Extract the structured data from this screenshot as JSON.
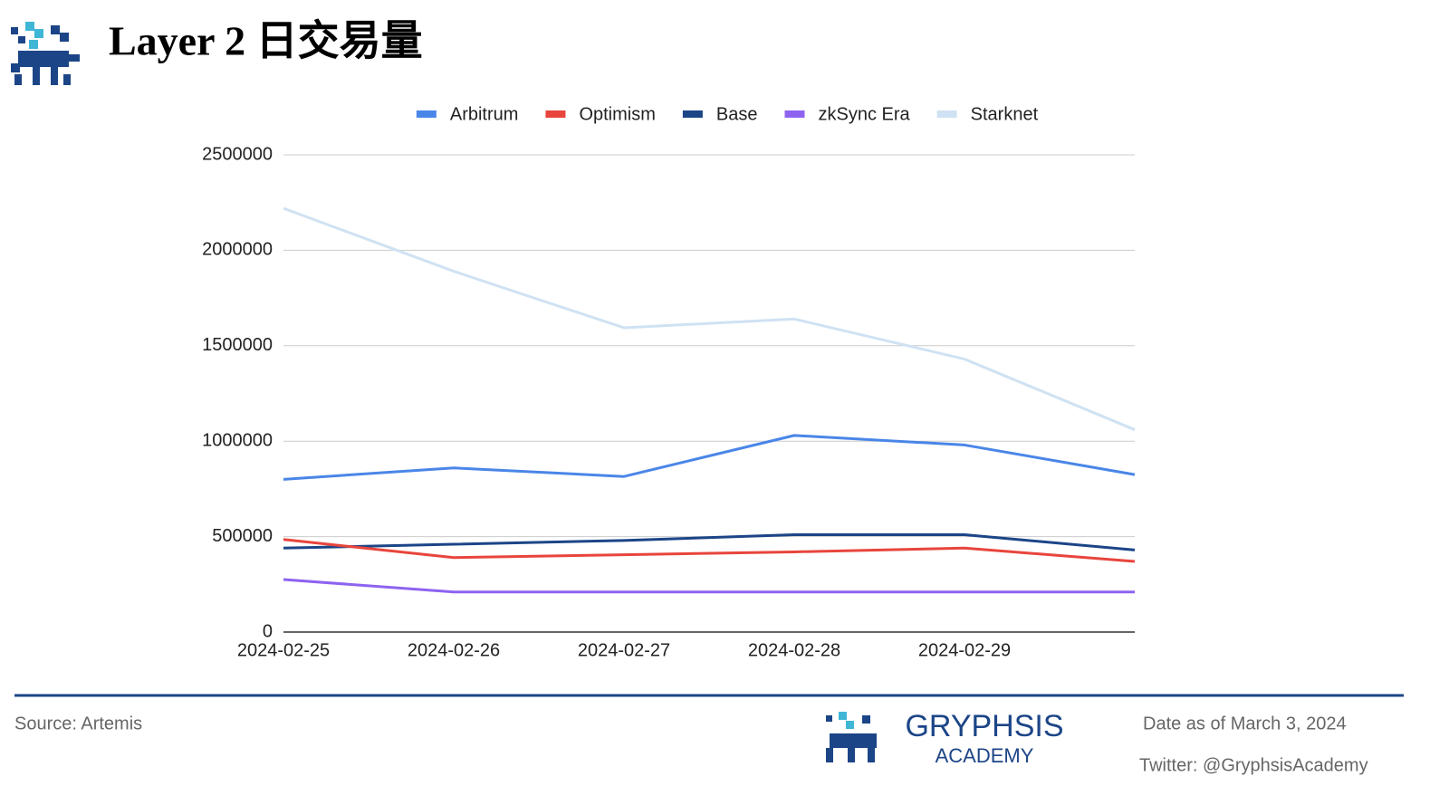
{
  "chart_data": {
    "type": "line",
    "title": "Layer 2 日交易量",
    "categories": [
      "2024-02-25",
      "2024-02-26",
      "2024-02-27",
      "2024-02-28",
      "2024-02-29",
      null
    ],
    "series": [
      {
        "name": "Arbitrum",
        "color": "#4a86e8",
        "values": [
          800000,
          860000,
          815000,
          1030000,
          980000,
          825000
        ]
      },
      {
        "name": "Optimism",
        "color": "#e8453c",
        "values": [
          485000,
          390000,
          405000,
          420000,
          440000,
          370000
        ]
      },
      {
        "name": "Base",
        "color": "#1c4587",
        "values": [
          440000,
          460000,
          480000,
          510000,
          510000,
          430000
        ]
      },
      {
        "name": "zkSync Era",
        "color": "#8e63f0",
        "values": [
          275000,
          210000,
          210000,
          210000,
          210000,
          210000
        ]
      },
      {
        "name": "Starknet",
        "color": "#cfe2f3",
        "values": [
          2220000,
          1890000,
          1594000,
          1640000,
          1430000,
          1060000
        ]
      }
    ],
    "ylim": [
      0,
      2500000
    ],
    "yticks": [
      0,
      500000,
      1000000,
      1500000,
      2000000,
      2500000
    ],
    "grid": true,
    "legend": "top"
  },
  "footer": {
    "source": "Source: Artemis",
    "brand": "GRYPHSIS",
    "brand_sub": "ACADEMY",
    "date": "Date as of March 3, 2024",
    "twitter": "Twitter: @GryphsisAcademy"
  }
}
